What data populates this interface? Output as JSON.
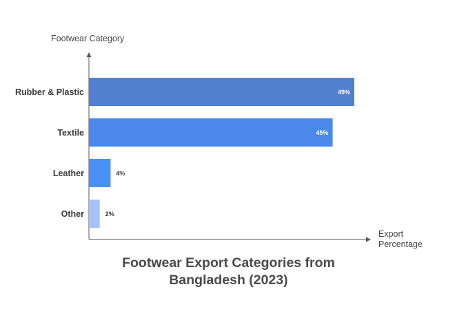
{
  "chart_data": {
    "type": "bar",
    "orientation": "horizontal",
    "title": "Footwear Export Categories from Bangladesh (2023)",
    "title_lines": [
      "Footwear Export Categories from",
      "Bangladesh (2023)"
    ],
    "ylabel": "Footwear Category",
    "xlabel_lines": [
      "Export",
      "Percentage"
    ],
    "categories": [
      "Rubber & Plastic",
      "Textile",
      "Leather",
      "Other"
    ],
    "values": [
      49,
      45,
      4,
      2
    ],
    "value_labels": [
      "49%",
      "45%",
      "4%",
      "2%"
    ],
    "colors": [
      "#5080cf",
      "#4a88ea",
      "#4a90f8",
      "#a4c3f8"
    ],
    "xlim": [
      0,
      60
    ],
    "grid": false,
    "legend": "none"
  }
}
